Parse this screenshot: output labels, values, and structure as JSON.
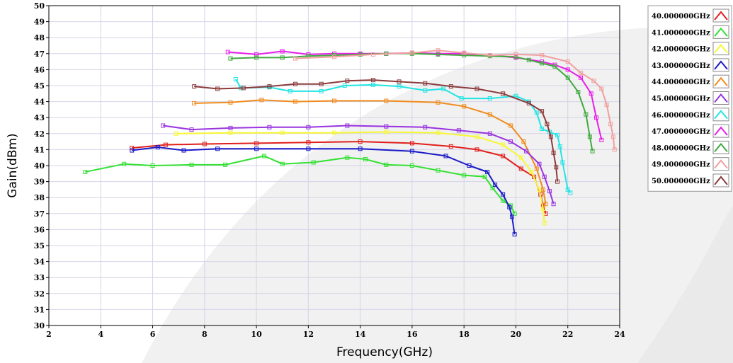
{
  "chart_data": {
    "type": "line",
    "title": "",
    "xlabel": "Frequency(GHz)",
    "ylabel": "Gain(dBm)",
    "xlim": [
      2,
      24
    ],
    "ylim": [
      30,
      50
    ],
    "xticks": [
      "2",
      "4",
      "6",
      "8",
      "10",
      "12",
      "14",
      "16",
      "18",
      "20",
      "22",
      "24"
    ],
    "yticks": [
      "30",
      "31",
      "32",
      "33",
      "34",
      "35",
      "36",
      "37",
      "38",
      "39",
      "40",
      "41",
      "42",
      "43",
      "44",
      "45",
      "46",
      "47",
      "48",
      "49",
      "50"
    ],
    "grid": true,
    "legend_position": "right",
    "series": [
      {
        "name": "40.000000GHz",
        "color": "#e0201c",
        "points": [
          [
            5.2,
            41.1
          ],
          [
            6.5,
            41.3
          ],
          [
            8,
            41.35
          ],
          [
            10,
            41.4
          ],
          [
            12,
            41.45
          ],
          [
            14,
            41.5
          ],
          [
            16,
            41.4
          ],
          [
            17.5,
            41.2
          ],
          [
            18.5,
            41
          ],
          [
            19.5,
            40.6
          ],
          [
            20.2,
            39.8
          ],
          [
            20.7,
            39.3
          ],
          [
            20.95,
            38.2
          ],
          [
            21.05,
            37.5
          ],
          [
            21.15,
            37
          ]
        ]
      },
      {
        "name": "41.000000GHz",
        "color": "#33e033",
        "points": [
          [
            3.4,
            39.6
          ],
          [
            4.9,
            40.1
          ],
          [
            6,
            40
          ],
          [
            7.5,
            40.05
          ],
          [
            8.8,
            40.05
          ],
          [
            10.3,
            40.6
          ],
          [
            11,
            40.1
          ],
          [
            12.2,
            40.2
          ],
          [
            13.5,
            40.5
          ],
          [
            14.2,
            40.4
          ],
          [
            15,
            40.05
          ],
          [
            16,
            40
          ],
          [
            17,
            39.7
          ],
          [
            18,
            39.4
          ],
          [
            18.8,
            39.3
          ],
          [
            19.1,
            38.6
          ],
          [
            19.5,
            37.8
          ],
          [
            19.8,
            37.5
          ],
          [
            19.95,
            37
          ]
        ]
      },
      {
        "name": "42.000000GHz",
        "color": "#f7f733",
        "points": [
          [
            6.9,
            42
          ],
          [
            9,
            42.05
          ],
          [
            11,
            42.05
          ],
          [
            13,
            42.05
          ],
          [
            15,
            42.1
          ],
          [
            17,
            42.05
          ],
          [
            18.5,
            41.8
          ],
          [
            19.5,
            41.3
          ],
          [
            20.2,
            40.5
          ],
          [
            20.6,
            39.6
          ],
          [
            20.9,
            38.5
          ],
          [
            21.05,
            37.3
          ],
          [
            21.1,
            36.4
          ]
        ]
      },
      {
        "name": "43.000000GHz",
        "color": "#1a1ac8",
        "points": [
          [
            5.2,
            40.95
          ],
          [
            6.2,
            41.15
          ],
          [
            7.2,
            40.95
          ],
          [
            8.5,
            41.05
          ],
          [
            10,
            41.05
          ],
          [
            12,
            41.05
          ],
          [
            14,
            41.05
          ],
          [
            16,
            40.9
          ],
          [
            17.3,
            40.6
          ],
          [
            18.2,
            40
          ],
          [
            18.9,
            39.6
          ],
          [
            19.2,
            38.8
          ],
          [
            19.5,
            38.2
          ],
          [
            19.75,
            37.4
          ],
          [
            19.85,
            36.8
          ],
          [
            19.95,
            35.7
          ]
        ]
      },
      {
        "name": "44.000000GHz",
        "color": "#f08c1e",
        "points": [
          [
            7.6,
            43.9
          ],
          [
            9,
            43.95
          ],
          [
            10.2,
            44.1
          ],
          [
            11.5,
            44
          ],
          [
            13,
            44.05
          ],
          [
            15,
            44.05
          ],
          [
            17,
            43.95
          ],
          [
            18,
            43.7
          ],
          [
            19,
            43.2
          ],
          [
            19.8,
            42.5
          ],
          [
            20.3,
            41.5
          ],
          [
            20.8,
            39.8
          ],
          [
            21.05,
            38.5
          ],
          [
            21.15,
            37.6
          ]
        ]
      },
      {
        "name": "45.000000GHz",
        "color": "#9933e0",
        "points": [
          [
            6.4,
            42.5
          ],
          [
            7.5,
            42.25
          ],
          [
            9,
            42.35
          ],
          [
            10.5,
            42.4
          ],
          [
            12,
            42.4
          ],
          [
            13.5,
            42.5
          ],
          [
            15,
            42.45
          ],
          [
            16.5,
            42.4
          ],
          [
            17.8,
            42.2
          ],
          [
            19,
            42
          ],
          [
            19.8,
            41.5
          ],
          [
            20.4,
            40.9
          ],
          [
            20.9,
            40.1
          ],
          [
            21.1,
            39.3
          ],
          [
            21.3,
            38.4
          ],
          [
            21.45,
            37.6
          ]
        ]
      },
      {
        "name": "46.000000GHz",
        "color": "#22e4e4",
        "points": [
          [
            9.2,
            45.4
          ],
          [
            9.4,
            44.85
          ],
          [
            10.5,
            44.9
          ],
          [
            11.3,
            44.65
          ],
          [
            12.5,
            44.65
          ],
          [
            13.4,
            45
          ],
          [
            14.5,
            45.05
          ],
          [
            15.5,
            44.95
          ],
          [
            16.5,
            44.7
          ],
          [
            17.2,
            44.8
          ],
          [
            17.9,
            44.2
          ],
          [
            19,
            44.2
          ],
          [
            20,
            44.35
          ],
          [
            20.5,
            44
          ],
          [
            20.8,
            43.3
          ],
          [
            21,
            42.3
          ],
          [
            21.3,
            42.1
          ],
          [
            21.6,
            41.9
          ],
          [
            21.7,
            41.2
          ],
          [
            21.8,
            40.2
          ],
          [
            22,
            38.5
          ],
          [
            22.1,
            38.3
          ]
        ]
      },
      {
        "name": "47.000000GHz",
        "color": "#e81ee8",
        "points": [
          [
            8.9,
            47.1
          ],
          [
            10,
            46.95
          ],
          [
            11,
            47.15
          ],
          [
            12,
            46.95
          ],
          [
            13,
            47
          ],
          [
            14,
            47
          ],
          [
            15,
            47
          ],
          [
            16,
            47.05
          ],
          [
            17,
            47
          ],
          [
            18,
            47
          ],
          [
            19,
            46.9
          ],
          [
            20,
            46.75
          ],
          [
            21,
            46.5
          ],
          [
            21.5,
            46.3
          ],
          [
            22,
            46
          ],
          [
            22.5,
            45.5
          ],
          [
            22.9,
            44.5
          ],
          [
            23.1,
            43
          ],
          [
            23.3,
            41.6
          ]
        ]
      },
      {
        "name": "48.000000GHz",
        "color": "#3faa3f",
        "points": [
          [
            9,
            46.7
          ],
          [
            10,
            46.75
          ],
          [
            11,
            46.75
          ],
          [
            12,
            46.85
          ],
          [
            13,
            46.9
          ],
          [
            14,
            46.95
          ],
          [
            15,
            47
          ],
          [
            16,
            47
          ],
          [
            17,
            46.95
          ],
          [
            18,
            46.9
          ],
          [
            19,
            46.85
          ],
          [
            20,
            46.8
          ],
          [
            20.5,
            46.6
          ],
          [
            21,
            46.4
          ],
          [
            21.5,
            46.2
          ],
          [
            22,
            45.5
          ],
          [
            22.4,
            44.6
          ],
          [
            22.7,
            43.2
          ],
          [
            22.85,
            41.8
          ],
          [
            22.95,
            40.9
          ]
        ]
      },
      {
        "name": "49.000000GHz",
        "color": "#f0a0a0",
        "points": [
          [
            11.5,
            46.7
          ],
          [
            13,
            46.8
          ],
          [
            14.5,
            46.95
          ],
          [
            16,
            47.05
          ],
          [
            17,
            47.2
          ],
          [
            18,
            47.05
          ],
          [
            19,
            46.9
          ],
          [
            20,
            46.95
          ],
          [
            21,
            46.9
          ],
          [
            22,
            46.5
          ],
          [
            22.5,
            45.8
          ],
          [
            23,
            45.3
          ],
          [
            23.3,
            44.8
          ],
          [
            23.5,
            43.8
          ],
          [
            23.65,
            42.6
          ],
          [
            23.75,
            41.8
          ],
          [
            23.8,
            41
          ]
        ]
      },
      {
        "name": "50.000000GHz",
        "color": "#8b3a3a",
        "points": [
          [
            7.6,
            44.95
          ],
          [
            8.5,
            44.8
          ],
          [
            9.5,
            44.85
          ],
          [
            10.5,
            44.95
          ],
          [
            11.5,
            45.1
          ],
          [
            12.5,
            45.1
          ],
          [
            13.5,
            45.3
          ],
          [
            14.5,
            45.35
          ],
          [
            15.5,
            45.25
          ],
          [
            16.5,
            45.15
          ],
          [
            17.5,
            44.95
          ],
          [
            18.5,
            44.8
          ],
          [
            19.5,
            44.5
          ],
          [
            20.5,
            43.9
          ],
          [
            21,
            43.4
          ],
          [
            21.2,
            42.6
          ],
          [
            21.35,
            41.8
          ],
          [
            21.45,
            40.8
          ],
          [
            21.55,
            39.9
          ],
          [
            21.6,
            39
          ]
        ]
      }
    ]
  }
}
